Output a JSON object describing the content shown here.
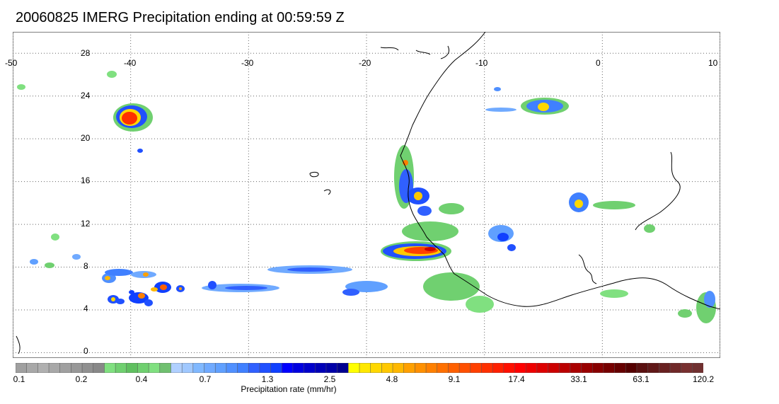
{
  "title": "20060825 IMERG Precipitation ending at 00:59:59 Z",
  "map": {
    "lon_range": [
      -50,
      10
    ],
    "lat_range": [
      -0.5,
      30
    ],
    "lon_labels": [
      "-50",
      "-40",
      "-30",
      "-20",
      "-10",
      "0",
      "10"
    ],
    "lat_labels": [
      "28",
      "24",
      "20",
      "16",
      "12",
      "8",
      "4",
      "0"
    ],
    "gridlines": "dotted",
    "coastline_color": "#000000"
  },
  "colorbar": {
    "colors": [
      "#a0a0a0",
      "#a8a8a8",
      "#b0b0b0",
      "#a8a8a8",
      "#a0a0a0",
      "#989898",
      "#909090",
      "#888888",
      "#80e080",
      "#70d070",
      "#60c060",
      "#70d070",
      "#80e080",
      "#70c070",
      "#b0d0ff",
      "#a0c8ff",
      "#80b8ff",
      "#70aaff",
      "#60a0ff",
      "#5090ff",
      "#4080ff",
      "#3060ff",
      "#2050ff",
      "#1040ff",
      "#0000ff",
      "#0000e0",
      "#0000cc",
      "#0000b8",
      "#0000a8",
      "#000090",
      "#ffff00",
      "#ffe800",
      "#ffd800",
      "#ffc800",
      "#ffb800",
      "#ffa000",
      "#ff9000",
      "#ff8000",
      "#ff7000",
      "#ff6000",
      "#ff5000",
      "#ff4000",
      "#ff3000",
      "#ff2000",
      "#ff1000",
      "#ff0000",
      "#ee0000",
      "#dd0000",
      "#cc0000",
      "#bb0000",
      "#aa0000",
      "#990000",
      "#880000",
      "#770000",
      "#660000",
      "#550000",
      "#5a1010",
      "#601818",
      "#682020",
      "#702828",
      "#783030",
      "#703030"
    ],
    "labels": [
      "0.1",
      "0.2",
      "0.4",
      "0.7",
      "1.3",
      "2.5",
      "4.8",
      "9.1",
      "17.4",
      "33.1",
      "63.1",
      "120.2"
    ],
    "title": "Precipitation rate (mm/hr)"
  }
}
